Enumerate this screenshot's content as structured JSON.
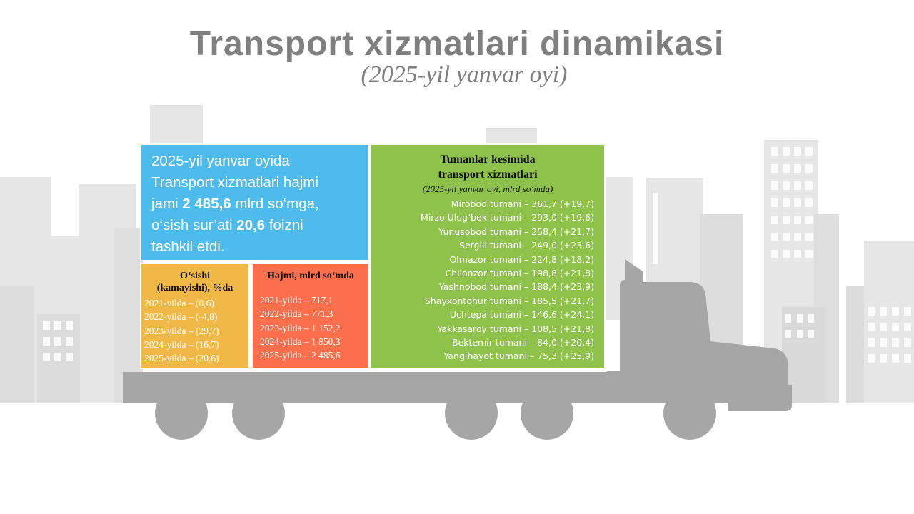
{
  "title": "Transport xizmatlari dinamikasi",
  "subtitle": "(2025-yil yanvar oyi)",
  "summary": {
    "line1": "2025-yil  yanvar oyida",
    "line2": "Transport xizmatlari hajmi",
    "line3_prefix": "jami ",
    "line3_bold": "2 485,6",
    "line3_suffix": " mlrd so‘mga,",
    "line4_prefix": "o‘sish sur’ati ",
    "line4_bold": "20,6",
    "line4_suffix": " foizni",
    "line5": "tashkil etdi."
  },
  "growth": {
    "heading_line1": "O‘sishi",
    "heading_line2": "(kamayishi),  %da",
    "items": [
      "2021-yilda  – (0,6)",
      "2022-yilda  – (-4,8)",
      "2023-yilda  – (29,7)",
      "2024-yilda  – (16,7)",
      "2025-yilda  – (20,6)"
    ]
  },
  "volume": {
    "heading": "Hajmi,  mlrd so‘mda",
    "items": [
      "2021-yilda  – 717,1",
      "2022-yilda  – 771,3",
      "2023-yilda  – 1 152,2",
      "2024-yilda  – 1 850,3",
      "2025-yilda  – 2 485,6"
    ]
  },
  "districts": {
    "title_line1": "Tumanlar  kesimida",
    "title_line2": "transport  xizmatlari",
    "subtitle": "(2025-yil yanvar oyi, mlrd so‘mda)",
    "items": [
      "Mirobod  tumani – 361,7 (+19,7)",
      "Mirzo Ulug‘bek tumani – 293,0 (+19,6)",
      "Yunusobod tumani – 258,4 (+21,7)",
      "Sergili tumani – 249,0 (+23,6)",
      "Olmazor tumani – 224,8 (+18,2)",
      "Chilonzor tumani – 198,8 (+21,8)",
      "Yashnobod tumani – 188,4 (+23,9)",
      "Shayxontohur tumani – 185,5 (+21,7)",
      "Uchtepa tumani – 146,6 (+24,1)",
      "Yakkasaroy tumani – 108,5 (+21,8)",
      "Bektemir tumani – 84,0 (+20,4)",
      "Yangihayot tumani – 75,3 (+25,9)"
    ]
  },
  "colors": {
    "summary": "#4dbbec",
    "growth": "#f0b847",
    "volume": "#fb6f4d",
    "districts": "#8fc24a",
    "truck": "#a6a6a6",
    "city": "#e6e6e6",
    "title": "#7f7f7f"
  }
}
